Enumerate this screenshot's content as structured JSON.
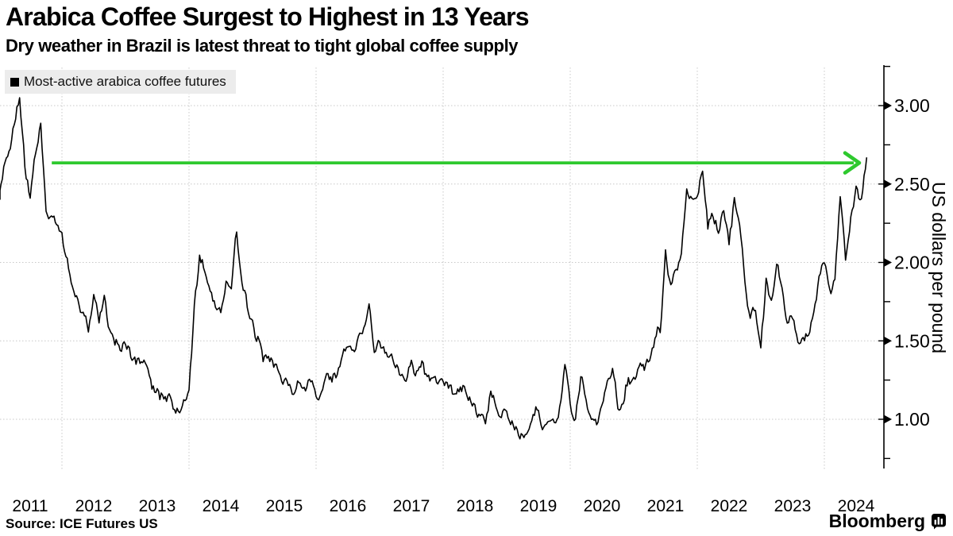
{
  "header": {
    "title": "Arabica Coffee Surgest to Highest in 13 Years",
    "subtitle": "Dry weather in Brazil is latest threat to tight global coffee supply"
  },
  "legend": {
    "marker": "black-square",
    "label": "Most-active arabica coffee futures"
  },
  "footer": {
    "source": "Source: ICE Futures US",
    "brand": "Bloomberg"
  },
  "colors": {
    "accent_green": "#2ec92e",
    "line": "#000000",
    "grid": "#c8c8c8",
    "axis": "#000000",
    "legend_bg": "#ececec",
    "text": "#000000"
  },
  "chart_data": {
    "type": "line",
    "title": "Arabica Coffee Surgest to Highest in 13 Years",
    "subtitle": "Dry weather in Brazil is latest threat to tight global coffee supply",
    "xlabel": "",
    "ylabel": "US dollars per pound",
    "legend": [
      "Most-active arabica coffee futures"
    ],
    "legend_position": "top-left",
    "grid": true,
    "xlim": [
      2011.0,
      2024.78
    ],
    "ylim": [
      0.72,
      3.28
    ],
    "x_tick_labels": [
      "2011",
      "2012",
      "2013",
      "2014",
      "2015",
      "2016",
      "2017",
      "2018",
      "2019",
      "2020",
      "2021",
      "2022",
      "2023",
      "2024"
    ],
    "x_gridline_years": [
      2012,
      2014,
      2016,
      2018,
      2020,
      2022,
      2024
    ],
    "y_ticks": [
      1.0,
      1.5,
      2.0,
      2.5,
      3.0
    ],
    "y_tick_labels": [
      "1.00",
      "1.50",
      "2.00",
      "2.50",
      "3.00"
    ],
    "y_minor_ticks": [
      0.75,
      1.25,
      1.75,
      2.25,
      2.75,
      3.25
    ],
    "annotation_arrow": {
      "shape": "horizontal-arrow-right",
      "y_value": 2.635,
      "x_start": 2011.84,
      "x_end": 2024.55,
      "color": "#2ec92e",
      "meaning": "current price back at 2011 peak level"
    },
    "series": [
      {
        "name": "Most-active arabica coffee futures",
        "unit": "USD per pound",
        "x_start_year": 2011.0,
        "x_step_years": 0.08333,
        "values": [
          2.4,
          2.6,
          2.72,
          2.88,
          3.05,
          2.6,
          2.42,
          2.7,
          2.88,
          2.32,
          2.3,
          2.25,
          2.18,
          2.02,
          1.84,
          1.77,
          1.68,
          1.55,
          1.8,
          1.62,
          1.8,
          1.58,
          1.48,
          1.44,
          1.48,
          1.4,
          1.36,
          1.37,
          1.35,
          1.2,
          1.19,
          1.16,
          1.14,
          1.07,
          1.05,
          1.12,
          1.18,
          1.72,
          2.04,
          1.95,
          1.82,
          1.72,
          1.68,
          1.88,
          1.82,
          2.2,
          1.88,
          1.72,
          1.62,
          1.52,
          1.36,
          1.4,
          1.32,
          1.3,
          1.24,
          1.22,
          1.16,
          1.24,
          1.18,
          1.24,
          1.14,
          1.18,
          1.28,
          1.24,
          1.28,
          1.42,
          1.46,
          1.44,
          1.52,
          1.58,
          1.74,
          1.42,
          1.5,
          1.42,
          1.4,
          1.34,
          1.28,
          1.24,
          1.38,
          1.3,
          1.36,
          1.27,
          1.26,
          1.22,
          1.24,
          1.2,
          1.17,
          1.18,
          1.2,
          1.14,
          1.09,
          1.03,
          0.97,
          1.18,
          1.08,
          1.0,
          1.04,
          0.98,
          0.94,
          0.89,
          0.91,
          1.02,
          1.06,
          0.94,
          0.99,
          0.97,
          1.08,
          1.36,
          1.1,
          1.0,
          1.28,
          1.12,
          1.0,
          0.96,
          1.08,
          1.24,
          1.32,
          1.06,
          1.1,
          1.26,
          1.26,
          1.34,
          1.3,
          1.38,
          1.52,
          1.56,
          2.08,
          1.86,
          1.95,
          2.05,
          2.48,
          2.4,
          2.42,
          2.58,
          2.22,
          2.28,
          2.18,
          2.32,
          2.12,
          2.42,
          2.24,
          1.88,
          1.64,
          1.7,
          1.46,
          1.9,
          1.75,
          2.0,
          1.84,
          1.62,
          1.64,
          1.48,
          1.52,
          1.54,
          1.68,
          1.9,
          2.0,
          1.82,
          1.88,
          2.41,
          2.02,
          2.3,
          2.48,
          2.4,
          2.67
        ]
      }
    ],
    "render_hints": {
      "noise_amplitudes": [
        0.042,
        0.026
      ],
      "point_jitter": 0.024,
      "value_clamp": [
        0.87,
        3.05
      ]
    }
  }
}
